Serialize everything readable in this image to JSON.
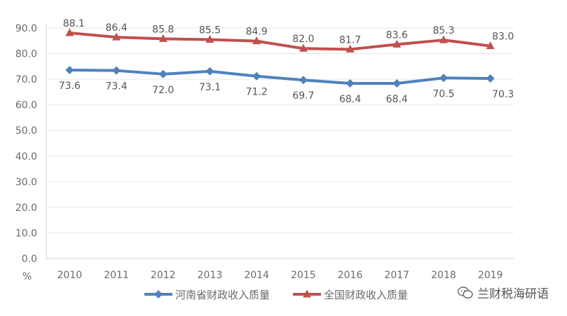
{
  "chart_data": {
    "type": "line",
    "categories": [
      "2010",
      "2011",
      "2012",
      "2013",
      "2014",
      "2015",
      "2016",
      "2017",
      "2018",
      "2019"
    ],
    "ylim": [
      0,
      90
    ],
    "yticks": [
      "0.0",
      "10.0",
      "20.0",
      "30.0",
      "40.0",
      "50.0",
      "60.0",
      "70.0",
      "80.0",
      "90.0"
    ],
    "ylabel": "%",
    "grid": true,
    "legend_position": "bottom",
    "series": [
      {
        "name": "河南省财政收入质量",
        "color": "#4f81bd",
        "marker": "diamond",
        "values": [
          73.6,
          73.4,
          72.0,
          73.1,
          71.2,
          69.7,
          68.4,
          68.4,
          70.5,
          70.3
        ],
        "labels": [
          "73.6",
          "73.4",
          "72.0",
          "73.1",
          "71.2",
          "69.7",
          "68.4",
          "68.4",
          "70.5",
          "70.3"
        ]
      },
      {
        "name": "全国财政收入质量",
        "color": "#c0504d",
        "marker": "triangle",
        "values": [
          88.1,
          86.4,
          85.8,
          85.5,
          84.9,
          82.0,
          81.7,
          83.6,
          85.3,
          83.0
        ],
        "labels": [
          "88.1",
          "86.4",
          "85.8",
          "85.5",
          "84.9",
          "82.0",
          "81.7",
          "83.6",
          "85.3",
          "83.0"
        ]
      }
    ]
  },
  "watermark": {
    "text": "兰财税海研语",
    "icon": "wechat-icon"
  }
}
